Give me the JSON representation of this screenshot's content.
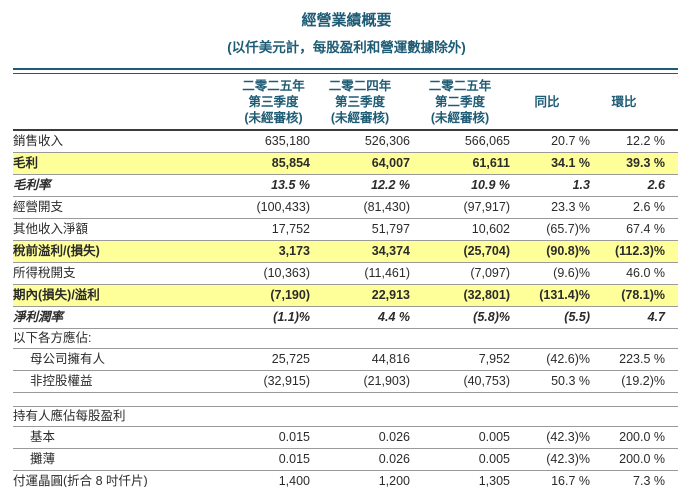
{
  "title": "經營業績概要",
  "subtitle": "(以仟美元計，每股盈利和營運數據除外)",
  "colors": {
    "accent_teal": "#1e5b75",
    "highlight_yellow": "#ffff99",
    "rule_gray": "#9a9a9a",
    "header_rule_dark": "#3b3b3b"
  },
  "table": {
    "column_headers": [
      {
        "lines": [
          "二零二五年",
          "第三季度",
          "(未經審核)"
        ]
      },
      {
        "lines": [
          "二零二四年",
          "第三季度",
          "(未經審核)"
        ]
      },
      {
        "lines": [
          "二零二五年",
          "第二季度",
          "(未經審核)"
        ]
      },
      {
        "lines": [
          "同比"
        ]
      },
      {
        "lines": [
          "環比"
        ]
      }
    ],
    "rows": [
      {
        "label": "銷售收入",
        "indent": false,
        "style": "normal",
        "values": [
          "635,180",
          "526,306",
          "566,065",
          "20.7 %",
          "12.2 %"
        ]
      },
      {
        "label": "毛利",
        "indent": false,
        "style": "highlight",
        "values": [
          "85,854",
          "64,007",
          "61,611",
          "34.1 %",
          "39.3 %"
        ]
      },
      {
        "label": "毛利率",
        "indent": false,
        "style": "italic",
        "values": [
          "13.5 %",
          "12.2 %",
          "10.9 %",
          "1.3",
          "2.6"
        ]
      },
      {
        "label": "經營開支",
        "indent": false,
        "style": "normal",
        "values": [
          "(100,433)",
          "(81,430)",
          "(97,917)",
          "23.3 %",
          "2.6 %"
        ]
      },
      {
        "label": "其他收入淨額",
        "indent": false,
        "style": "normal",
        "values": [
          "17,752",
          "51,797",
          "10,602",
          "(65.7)%",
          "67.4 %"
        ]
      },
      {
        "label": "稅前溢利/(損失)",
        "indent": false,
        "style": "highlight",
        "values": [
          "3,173",
          "34,374",
          "(25,704)",
          "(90.8)%",
          "(112.3)%"
        ]
      },
      {
        "label": "所得稅開支",
        "indent": false,
        "style": "normal",
        "values": [
          "(10,363)",
          "(11,461)",
          "(7,097)",
          "(9.6)%",
          "46.0 %"
        ]
      },
      {
        "label": "期內(損失)/溢利",
        "indent": false,
        "style": "highlight",
        "values": [
          "(7,190)",
          "22,913",
          "(32,801)",
          "(131.4)%",
          "(78.1)%"
        ]
      },
      {
        "label": "淨利潤率",
        "indent": false,
        "style": "italic",
        "values": [
          "(1.1)%",
          "4.4 %",
          "(5.8)%",
          "(5.5)",
          "4.7"
        ]
      },
      {
        "label": "以下各方應佔:",
        "indent": false,
        "style": "section",
        "values": [
          "",
          "",
          "",
          "",
          ""
        ]
      },
      {
        "label": "母公司擁有人",
        "indent": true,
        "style": "normal",
        "values": [
          "25,725",
          "44,816",
          "7,952",
          "(42.6)%",
          "223.5 %"
        ]
      },
      {
        "label": "非控股權益",
        "indent": true,
        "style": "normal",
        "values": [
          "(32,915)",
          "(21,903)",
          "(40,753)",
          "50.3 %",
          "(19.2)%"
        ]
      },
      {
        "label": "",
        "indent": false,
        "style": "spacer",
        "values": [
          "",
          "",
          "",
          "",
          ""
        ]
      },
      {
        "label": "持有人應佔每股盈利",
        "indent": false,
        "style": "section",
        "values": [
          "",
          "",
          "",
          "",
          ""
        ]
      },
      {
        "label": "基本",
        "indent": true,
        "style": "normal",
        "values": [
          "0.015",
          "0.026",
          "0.005",
          "(42.3)%",
          "200.0 %"
        ]
      },
      {
        "label": "攤薄",
        "indent": true,
        "style": "normal",
        "values": [
          "0.015",
          "0.026",
          "0.005",
          "(42.3)%",
          "200.0 %"
        ]
      },
      {
        "label": "付運晶圓(折合 8 吋仟片)",
        "indent": false,
        "style": "normal",
        "values": [
          "1,400",
          "1,200",
          "1,305",
          "16.7 %",
          "7.3 %"
        ]
      }
    ]
  }
}
